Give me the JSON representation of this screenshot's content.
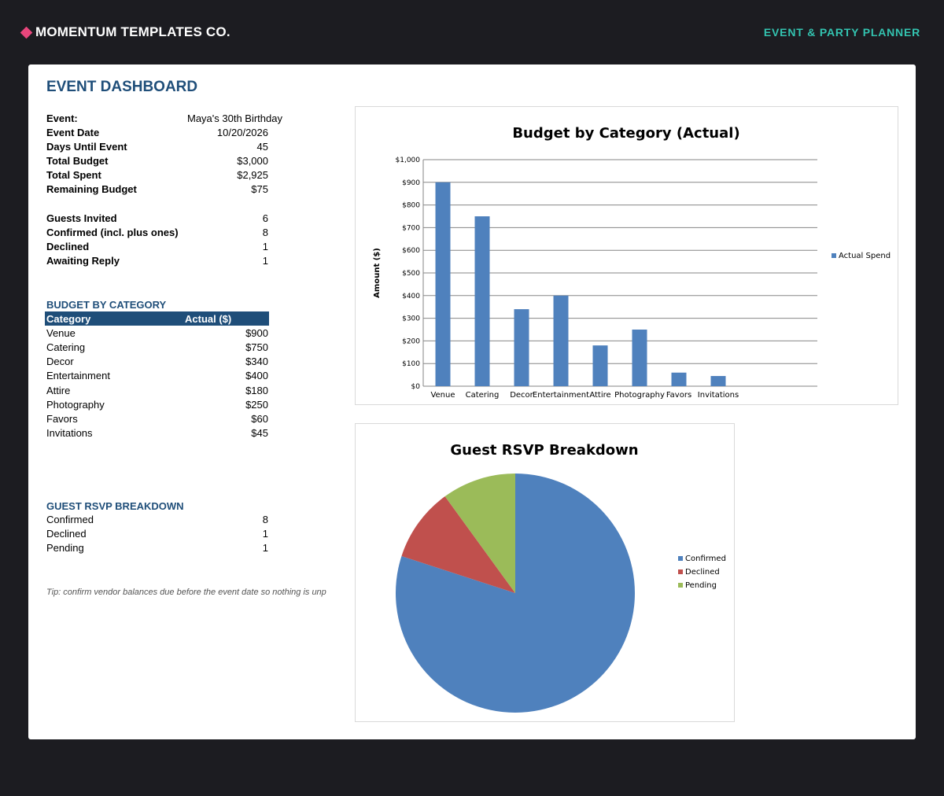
{
  "header": {
    "brand": "MOMENTUM TEMPLATES CO.",
    "tagline": "EVENT & PARTY PLANNER"
  },
  "dashboard": {
    "title": "EVENT DASHBOARD",
    "summary": [
      {
        "label": "Event:",
        "value": "Maya's 30th Birthday"
      },
      {
        "label": "Event Date",
        "value": "10/20/2026"
      },
      {
        "label": "Days Until Event",
        "value": "45"
      },
      {
        "label": "Total Budget",
        "value": "$3,000"
      },
      {
        "label": "Total Spent",
        "value": "$2,925"
      },
      {
        "label": "Remaining Budget",
        "value": "$75"
      }
    ],
    "guests": [
      {
        "label": "Guests Invited",
        "value": "6"
      },
      {
        "label": "Confirmed (incl. plus ones)",
        "value": "8"
      },
      {
        "label": "Declined",
        "value": "1"
      },
      {
        "label": "Awaiting Reply",
        "value": "1"
      }
    ],
    "budget_section": {
      "heading": "BUDGET BY CATEGORY",
      "col_category": "Category",
      "col_actual": "Actual ($)",
      "rows": [
        {
          "category": "Venue",
          "actual": "$900"
        },
        {
          "category": "Catering",
          "actual": "$750"
        },
        {
          "category": "Decor",
          "actual": "$340"
        },
        {
          "category": "Entertainment",
          "actual": "$400"
        },
        {
          "category": "Attire",
          "actual": "$180"
        },
        {
          "category": "Photography",
          "actual": "$250"
        },
        {
          "category": "Favors",
          "actual": "$60"
        },
        {
          "category": "Invitations",
          "actual": "$45"
        }
      ]
    },
    "rsvp_section": {
      "heading": "GUEST RSVP BREAKDOWN",
      "rows": [
        {
          "label": "Confirmed",
          "value": "8"
        },
        {
          "label": "Declined",
          "value": "1"
        },
        {
          "label": "Pending",
          "value": "1"
        }
      ]
    },
    "tip": "Tip: confirm vendor balances due before the event date so nothing is unp"
  },
  "chart_data": [
    {
      "type": "bar",
      "title": "Budget by Category (Actual)",
      "xlabel": "",
      "ylabel": "Amount ($)",
      "categories": [
        "Venue",
        "Catering",
        "Decor",
        "Entertainment",
        "Attire",
        "Photography",
        "Favors",
        "Invitations"
      ],
      "series": [
        {
          "name": "Actual Spend",
          "values": [
            900,
            750,
            340,
            400,
            180,
            250,
            60,
            45
          ],
          "color": "#4f81bd"
        }
      ],
      "ylim": [
        0,
        1000
      ],
      "yticks": [
        0,
        100,
        200,
        300,
        400,
        500,
        600,
        700,
        800,
        900,
        1000
      ],
      "ytick_labels": [
        "$0",
        "$100",
        "$200",
        "$300",
        "$400",
        "$500",
        "$600",
        "$700",
        "$800",
        "$900",
        "$1,000"
      ],
      "grid": true,
      "legend": "right"
    },
    {
      "type": "pie",
      "title": "Guest RSVP Breakdown",
      "labels": [
        "Confirmed",
        "Declined",
        "Pending"
      ],
      "values": [
        8,
        1,
        1
      ],
      "colors": [
        "#4f81bd",
        "#c0504d",
        "#9bbb59"
      ],
      "legend": "right"
    }
  ]
}
